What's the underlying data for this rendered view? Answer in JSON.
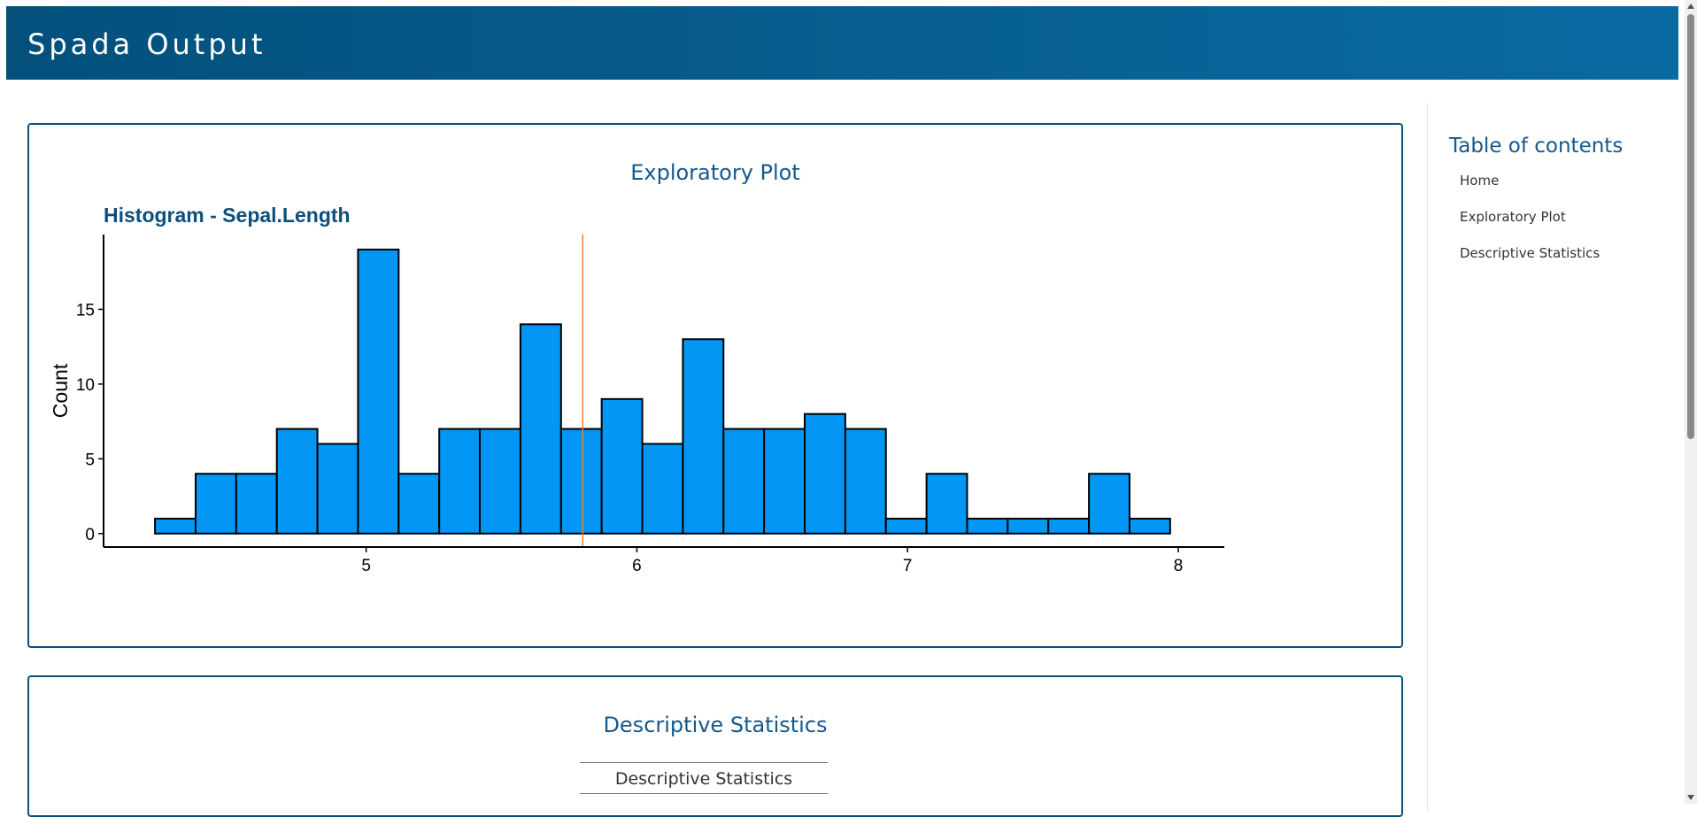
{
  "header": {
    "title": "Spada Output"
  },
  "plot_section": {
    "heading": "Exploratory Plot"
  },
  "stats_section": {
    "heading": "Descriptive Statistics",
    "table_title": "Descriptive Statistics"
  },
  "toc": {
    "title": "Table of contents",
    "items": [
      "Home",
      "Exploratory Plot",
      "Descriptive Statistics"
    ]
  },
  "colors": {
    "accent": "#0d4f7c",
    "bar_fill": "#0396f5",
    "mean_line": "#f07a3c"
  },
  "chart_data": {
    "type": "bar",
    "title": "Histogram - Sepal.Length",
    "xlabel": "",
    "ylabel": "Count",
    "bin_width": 0.15,
    "bins_start": [
      4.22,
      4.37,
      4.52,
      4.67,
      4.82,
      4.97,
      5.12,
      5.27,
      5.42,
      5.57,
      5.72,
      5.87,
      6.02,
      6.17,
      6.32,
      6.47,
      6.62,
      6.77,
      6.92,
      7.07,
      7.22,
      7.37,
      7.52,
      7.67,
      7.82
    ],
    "values": [
      1,
      4,
      4,
      7,
      6,
      19,
      4,
      7,
      7,
      14,
      7,
      9,
      6,
      13,
      7,
      7,
      8,
      7,
      1,
      4,
      1,
      1,
      1,
      4,
      1
    ],
    "mean_line_x": 5.8,
    "xlim": [
      4.03,
      8.17
    ],
    "ylim": [
      -0.9,
      20
    ],
    "x_ticks": [
      "5",
      "6",
      "7",
      "8"
    ],
    "y_ticks": [
      "0",
      "5",
      "10",
      "15"
    ]
  }
}
